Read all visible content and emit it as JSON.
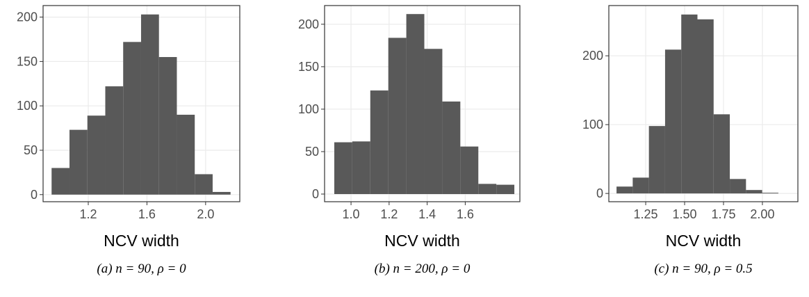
{
  "chart_data": [
    {
      "type": "histogram",
      "caption": "(a) n = 90, ρ = 0",
      "xlabel": "NCV width",
      "bins": [
        0.95,
        1.072,
        1.194,
        1.316,
        1.438,
        1.56,
        1.682,
        1.804,
        1.926,
        2.048,
        2.17
      ],
      "values": [
        30,
        73,
        89,
        122,
        172,
        203,
        155,
        90,
        23,
        3
      ],
      "color": "#595959",
      "xlim": [
        0.892,
        2.233
      ],
      "xticks": [
        1.2,
        1.6,
        {
          "value": 2,
          "label": "2.0"
        }
      ],
      "ylim": [
        -8,
        213
      ],
      "yticks": [
        0,
        50,
        100,
        150,
        200
      ],
      "grid": true
    },
    {
      "type": "histogram",
      "caption": "(b) n = 200, ρ = 0",
      "xlabel": "NCV width",
      "bins": [
        0.912,
        1.0066,
        1.1012,
        1.1958,
        1.2904,
        1.385,
        1.4796,
        1.5742,
        1.6688,
        1.7634,
        1.858
      ],
      "values": [
        61,
        62,
        122,
        184,
        212,
        171,
        109,
        56,
        12,
        11
      ],
      "color": "#595959",
      "xlim": [
        0.861,
        1.887
      ],
      "xticks": [
        {
          "value": 1,
          "label": "1.0"
        },
        1.2,
        1.4,
        1.6
      ],
      "ylim": [
        -9,
        222
      ],
      "yticks": [
        0,
        50,
        100,
        150,
        200
      ],
      "grid": true
    },
    {
      "type": "histogram",
      "caption": "(c) n = 90, ρ = 0.5",
      "xlabel": "NCV width",
      "bins": [
        1.0625,
        1.1665,
        1.2705,
        1.3745,
        1.4785,
        1.5825,
        1.6865,
        1.7905,
        1.8945,
        1.9985,
        2.1025
      ],
      "values": [
        10,
        23,
        98,
        209,
        260,
        253,
        115,
        21,
        5,
        1
      ],
      "color": "#595959",
      "xlim": [
        1.013,
        2.228
      ],
      "xticks": [
        1.25,
        {
          "value": 1.5,
          "label": "1.50"
        },
        1.75,
        {
          "value": 2,
          "label": "2.00"
        }
      ],
      "ylim": [
        -12,
        273
      ],
      "yticks": [
        0,
        100,
        200
      ],
      "grid": true
    }
  ]
}
